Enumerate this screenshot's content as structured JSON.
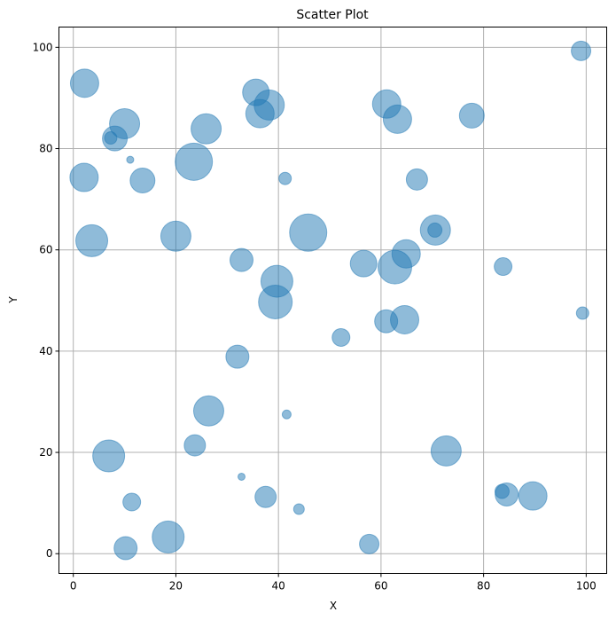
{
  "chart_data": {
    "type": "scatter",
    "title": "Scatter Plot",
    "xlabel": "X",
    "ylabel": "Y",
    "xlim": [
      -2.8,
      104.0
    ],
    "ylim": [
      -3.9,
      104.0
    ],
    "xticks": [
      0,
      20,
      40,
      60,
      80,
      100
    ],
    "yticks": [
      0,
      20,
      40,
      60,
      80,
      100
    ],
    "grid": true,
    "legend": null,
    "marker_color": "#1f77b4",
    "marker_alpha": 0.5,
    "size_unit": "marker radius in px (approx.)",
    "points": [
      {
        "x": 2.2,
        "y": 92.9,
        "size": 16
      },
      {
        "x": 10.0,
        "y": 84.9,
        "size": 17
      },
      {
        "x": 8.1,
        "y": 82.0,
        "size": 14
      },
      {
        "x": 7.3,
        "y": 82.1,
        "size": 7
      },
      {
        "x": 11.1,
        "y": 77.8,
        "size": 4
      },
      {
        "x": 2.1,
        "y": 74.3,
        "size": 16
      },
      {
        "x": 13.5,
        "y": 73.7,
        "size": 14
      },
      {
        "x": 3.6,
        "y": 61.8,
        "size": 18
      },
      {
        "x": 20.0,
        "y": 62.7,
        "size": 17
      },
      {
        "x": 23.5,
        "y": 77.4,
        "size": 21
      },
      {
        "x": 25.9,
        "y": 83.9,
        "size": 17
      },
      {
        "x": 35.6,
        "y": 91.1,
        "size": 15
      },
      {
        "x": 36.4,
        "y": 86.9,
        "size": 16
      },
      {
        "x": 38.2,
        "y": 88.6,
        "size": 17
      },
      {
        "x": 41.3,
        "y": 74.1,
        "size": 7
      },
      {
        "x": 32.8,
        "y": 58.0,
        "size": 13
      },
      {
        "x": 39.7,
        "y": 53.8,
        "size": 18
      },
      {
        "x": 39.4,
        "y": 49.7,
        "size": 19
      },
      {
        "x": 45.8,
        "y": 63.4,
        "size": 21
      },
      {
        "x": 32.0,
        "y": 38.9,
        "size": 13
      },
      {
        "x": 26.4,
        "y": 28.2,
        "size": 17
      },
      {
        "x": 23.7,
        "y": 21.4,
        "size": 12
      },
      {
        "x": 41.6,
        "y": 27.5,
        "size": 5
      },
      {
        "x": 6.9,
        "y": 19.3,
        "size": 18
      },
      {
        "x": 32.8,
        "y": 15.2,
        "size": 4
      },
      {
        "x": 11.4,
        "y": 10.2,
        "size": 10
      },
      {
        "x": 37.5,
        "y": 11.2,
        "size": 12
      },
      {
        "x": 44.0,
        "y": 8.8,
        "size": 6
      },
      {
        "x": 18.5,
        "y": 3.3,
        "size": 18
      },
      {
        "x": 10.2,
        "y": 1.1,
        "size": 13
      },
      {
        "x": 99.0,
        "y": 99.3,
        "size": 11
      },
      {
        "x": 61.1,
        "y": 88.8,
        "size": 16
      },
      {
        "x": 63.2,
        "y": 85.8,
        "size": 16
      },
      {
        "x": 77.7,
        "y": 86.5,
        "size": 14
      },
      {
        "x": 67.0,
        "y": 73.9,
        "size": 12
      },
      {
        "x": 70.6,
        "y": 63.9,
        "size": 17
      },
      {
        "x": 70.5,
        "y": 63.9,
        "size": 8
      },
      {
        "x": 56.6,
        "y": 57.3,
        "size": 15
      },
      {
        "x": 64.9,
        "y": 59.2,
        "size": 16
      },
      {
        "x": 62.7,
        "y": 56.6,
        "size": 19
      },
      {
        "x": 83.8,
        "y": 56.7,
        "size": 10
      },
      {
        "x": 99.3,
        "y": 47.5,
        "size": 7
      },
      {
        "x": 52.2,
        "y": 42.7,
        "size": 10
      },
      {
        "x": 61.0,
        "y": 45.9,
        "size": 13
      },
      {
        "x": 64.6,
        "y": 46.2,
        "size": 16
      },
      {
        "x": 72.7,
        "y": 20.3,
        "size": 17
      },
      {
        "x": 84.5,
        "y": 11.7,
        "size": 13
      },
      {
        "x": 83.6,
        "y": 12.3,
        "size": 8
      },
      {
        "x": 89.6,
        "y": 11.4,
        "size": 16
      },
      {
        "x": 57.7,
        "y": 1.9,
        "size": 11
      }
    ]
  }
}
